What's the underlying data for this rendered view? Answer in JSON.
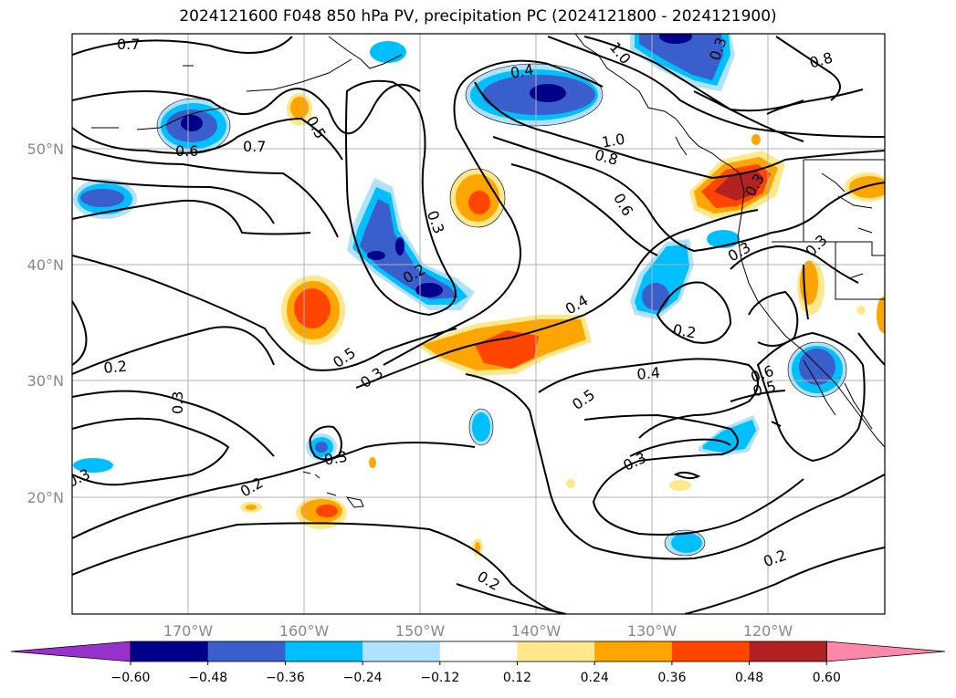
{
  "title": "2024121600 F048 850 hPa PV, precipitation PC (2024121800 - 2024121900)",
  "map": {
    "lon_ticks": [
      "170°W",
      "160°W",
      "150°W",
      "140°W",
      "130°W",
      "120°W"
    ],
    "lat_ticks": [
      "50°N",
      "40°N",
      "30°N",
      "20°N"
    ],
    "contour_labels": [
      "0.7",
      "0.6",
      "0.7",
      "0.5",
      "0.4",
      "1.0",
      "0.8",
      "0.6",
      "0.3",
      "0.2",
      "0.5",
      "0.3",
      "0.2",
      "0.3",
      "0.3",
      "0.2",
      "0.3",
      "0.4",
      "0.5",
      "0.4",
      "0.3",
      "0.2",
      "0.2",
      "0.6",
      "0.5",
      "0.3",
      "0.8",
      "0.3",
      "0.3",
      "0.2",
      "1.0",
      "0.3"
    ]
  },
  "colorbar": {
    "ticks": [
      "−0.60",
      "−0.48",
      "−0.36",
      "−0.24",
      "−0.12",
      "0.12",
      "0.24",
      "0.36",
      "0.48",
      "0.60"
    ],
    "colors": [
      "#9932cc",
      "#00008b",
      "#3a5fcd",
      "#00bfff",
      "#b0e2ff",
      "#ffffff",
      "#ffe88c",
      "#ffa500",
      "#ff4500",
      "#b22222",
      "#ff88aa"
    ]
  }
}
